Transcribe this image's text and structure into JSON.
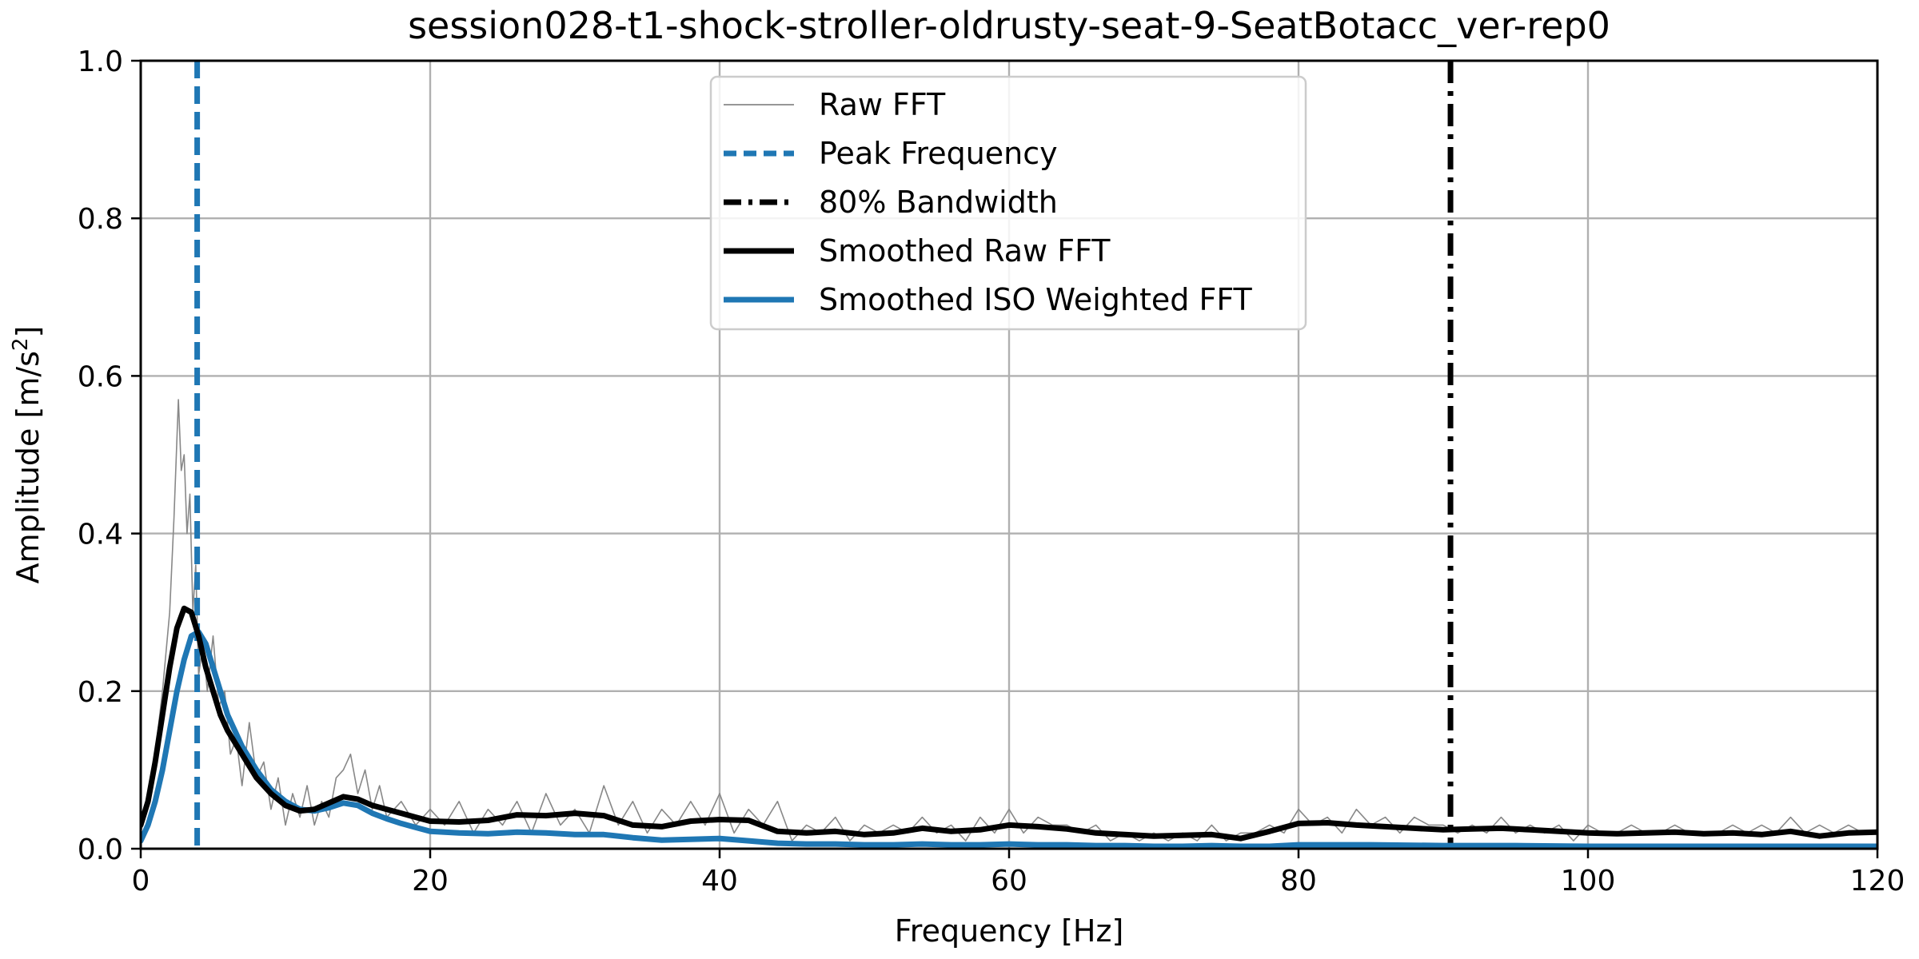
{
  "chart_data": {
    "type": "line",
    "title": "session028-t1-shock-stroller-oldrusty-seat-9-SeatBotacc_ver-rep0",
    "xlabel": "Frequency [Hz]",
    "ylabel": "Amplitude [m/s²]",
    "ylabel_main": "Amplitude [m/s",
    "ylabel_sup": "2",
    "ylabel_end": "]",
    "xlim": [
      0,
      120
    ],
    "ylim": [
      0,
      1.0
    ],
    "x_ticks": [
      0,
      20,
      40,
      60,
      80,
      100,
      120
    ],
    "x_tick_labels": [
      "0",
      "20",
      "40",
      "60",
      "80",
      "100",
      "120"
    ],
    "y_ticks": [
      0,
      0.2,
      0.4,
      0.6,
      0.8,
      1.0
    ],
    "y_tick_labels": [
      "0.0",
      "0.2",
      "0.4",
      "0.6",
      "0.8",
      "1.0"
    ],
    "grid": true,
    "legend_position": "top-center",
    "legend": [
      {
        "label": "Raw FFT",
        "color": "#888888",
        "style": "thin"
      },
      {
        "label": "Peak Frequency",
        "color": "#1f77b4",
        "style": "dashed"
      },
      {
        "label": "80% Bandwidth",
        "color": "#000000",
        "style": "dashdot"
      },
      {
        "label": "Smoothed Raw FFT",
        "color": "#000000",
        "style": "thick"
      },
      {
        "label": "Smoothed ISO Weighted FFT",
        "color": "#1f77b4",
        "style": "thick"
      }
    ],
    "vlines": [
      {
        "name": "Peak Frequency",
        "x": 3.9,
        "color": "#1f77b4",
        "style": "dashed"
      },
      {
        "name": "80% Bandwidth",
        "x": 90.5,
        "color": "#000000",
        "style": "dashdot"
      }
    ],
    "series": [
      {
        "name": "Raw FFT",
        "color": "#888888",
        "x": [
          0,
          0.5,
          1,
          1.5,
          2,
          2.3,
          2.6,
          2.8,
          3,
          3.2,
          3.4,
          3.6,
          3.8,
          4,
          4.3,
          4.6,
          5,
          5.4,
          5.8,
          6.2,
          6.6,
          7,
          7.5,
          8,
          8.5,
          9,
          9.5,
          10,
          10.5,
          11,
          11.5,
          12,
          12.5,
          13,
          13.5,
          14,
          14.5,
          15,
          15.5,
          16,
          16.5,
          17,
          18,
          19,
          20,
          21,
          22,
          23,
          24,
          25,
          26,
          27,
          28,
          29,
          30,
          31,
          32,
          33,
          34,
          35,
          36,
          37,
          38,
          39,
          40,
          41,
          42,
          43,
          44,
          45,
          46,
          47,
          48,
          49,
          50,
          51,
          52,
          53,
          54,
          55,
          56,
          57,
          58,
          59,
          60,
          61,
          62,
          63,
          64,
          65,
          66,
          67,
          68,
          69,
          70,
          71,
          72,
          73,
          74,
          75,
          76,
          77,
          78,
          79,
          80,
          81,
          82,
          83,
          84,
          85,
          86,
          87,
          88,
          89,
          90,
          91,
          92,
          93,
          94,
          95,
          96,
          97,
          98,
          99,
          100,
          101,
          102,
          103,
          104,
          105,
          106,
          107,
          108,
          109,
          110,
          111,
          112,
          113,
          114,
          115,
          116,
          117,
          118,
          119,
          120
        ],
        "values": [
          0.02,
          0.06,
          0.12,
          0.2,
          0.3,
          0.42,
          0.57,
          0.48,
          0.5,
          0.4,
          0.45,
          0.3,
          0.36,
          0.22,
          0.26,
          0.2,
          0.27,
          0.18,
          0.2,
          0.12,
          0.14,
          0.08,
          0.16,
          0.09,
          0.11,
          0.05,
          0.09,
          0.03,
          0.07,
          0.04,
          0.08,
          0.03,
          0.06,
          0.04,
          0.09,
          0.1,
          0.12,
          0.07,
          0.1,
          0.05,
          0.08,
          0.04,
          0.06,
          0.03,
          0.05,
          0.03,
          0.06,
          0.02,
          0.05,
          0.03,
          0.06,
          0.02,
          0.07,
          0.03,
          0.05,
          0.02,
          0.08,
          0.03,
          0.06,
          0.02,
          0.05,
          0.03,
          0.06,
          0.03,
          0.07,
          0.02,
          0.05,
          0.03,
          0.06,
          0.01,
          0.03,
          0.02,
          0.04,
          0.01,
          0.03,
          0.02,
          0.03,
          0.02,
          0.04,
          0.02,
          0.03,
          0.01,
          0.04,
          0.02,
          0.05,
          0.02,
          0.04,
          0.03,
          0.03,
          0.02,
          0.03,
          0.01,
          0.02,
          0.01,
          0.02,
          0.01,
          0.02,
          0.01,
          0.03,
          0.01,
          0.02,
          0.02,
          0.03,
          0.02,
          0.05,
          0.03,
          0.04,
          0.02,
          0.05,
          0.03,
          0.04,
          0.02,
          0.04,
          0.03,
          0.03,
          0.02,
          0.03,
          0.02,
          0.04,
          0.02,
          0.03,
          0.02,
          0.03,
          0.01,
          0.03,
          0.02,
          0.02,
          0.03,
          0.02,
          0.02,
          0.03,
          0.02,
          0.02,
          0.02,
          0.03,
          0.02,
          0.03,
          0.02,
          0.04,
          0.02,
          0.03,
          0.02,
          0.03,
          0.02,
          0.02
        ]
      },
      {
        "name": "Smoothed Raw FFT",
        "color": "#000000",
        "x": [
          0,
          0.5,
          1,
          1.5,
          2,
          2.5,
          3,
          3.5,
          4,
          4.5,
          5,
          5.5,
          6,
          7,
          8,
          9,
          10,
          11,
          12,
          13,
          14,
          15,
          16,
          17,
          18,
          19,
          20,
          22,
          24,
          26,
          28,
          30,
          32,
          34,
          36,
          38,
          40,
          42,
          44,
          46,
          48,
          50,
          52,
          54,
          56,
          58,
          60,
          62,
          64,
          66,
          68,
          70,
          72,
          74,
          76,
          78,
          80,
          82,
          84,
          86,
          88,
          90,
          92,
          94,
          96,
          98,
          100,
          102,
          104,
          106,
          108,
          110,
          112,
          114,
          116,
          118,
          120
        ],
        "values": [
          0.03,
          0.06,
          0.11,
          0.17,
          0.23,
          0.28,
          0.305,
          0.3,
          0.27,
          0.23,
          0.2,
          0.17,
          0.15,
          0.12,
          0.09,
          0.07,
          0.055,
          0.048,
          0.05,
          0.058,
          0.066,
          0.063,
          0.055,
          0.05,
          0.045,
          0.04,
          0.035,
          0.034,
          0.036,
          0.043,
          0.042,
          0.045,
          0.042,
          0.03,
          0.028,
          0.035,
          0.037,
          0.036,
          0.022,
          0.02,
          0.022,
          0.018,
          0.02,
          0.026,
          0.022,
          0.024,
          0.03,
          0.028,
          0.025,
          0.02,
          0.018,
          0.016,
          0.017,
          0.018,
          0.013,
          0.022,
          0.032,
          0.033,
          0.03,
          0.028,
          0.026,
          0.024,
          0.025,
          0.026,
          0.024,
          0.022,
          0.02,
          0.019,
          0.02,
          0.021,
          0.019,
          0.02,
          0.018,
          0.022,
          0.016,
          0.02,
          0.021
        ]
      },
      {
        "name": "Smoothed ISO Weighted FFT",
        "color": "#1f77b4",
        "x": [
          0,
          0.5,
          1,
          1.5,
          2,
          2.5,
          3,
          3.5,
          4,
          4.5,
          5,
          5.5,
          6,
          7,
          8,
          9,
          10,
          11,
          12,
          13,
          14,
          15,
          16,
          17,
          18,
          19,
          20,
          22,
          24,
          26,
          28,
          30,
          32,
          34,
          36,
          38,
          40,
          42,
          44,
          46,
          48,
          50,
          52,
          54,
          56,
          58,
          60,
          62,
          64,
          66,
          68,
          70,
          72,
          74,
          76,
          78,
          80,
          85,
          90,
          95,
          100,
          105,
          110,
          115,
          120
        ],
        "values": [
          0.01,
          0.03,
          0.06,
          0.1,
          0.15,
          0.2,
          0.24,
          0.27,
          0.275,
          0.26,
          0.23,
          0.2,
          0.17,
          0.13,
          0.1,
          0.075,
          0.06,
          0.05,
          0.048,
          0.052,
          0.058,
          0.055,
          0.045,
          0.038,
          0.032,
          0.027,
          0.022,
          0.02,
          0.019,
          0.021,
          0.02,
          0.018,
          0.018,
          0.014,
          0.011,
          0.012,
          0.013,
          0.01,
          0.007,
          0.006,
          0.006,
          0.005,
          0.005,
          0.006,
          0.005,
          0.005,
          0.006,
          0.005,
          0.005,
          0.004,
          0.004,
          0.003,
          0.003,
          0.004,
          0.003,
          0.003,
          0.005,
          0.005,
          0.004,
          0.004,
          0.003,
          0.003,
          0.003,
          0.003,
          0.003
        ]
      }
    ]
  }
}
